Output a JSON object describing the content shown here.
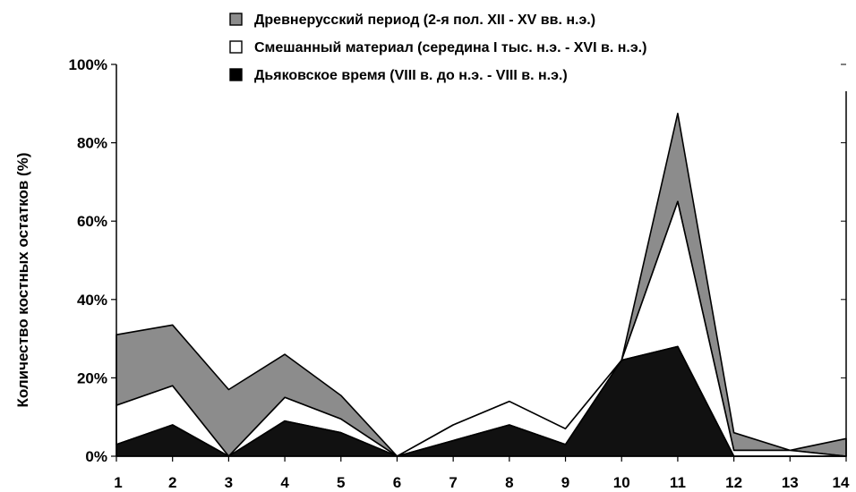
{
  "chart_data": {
    "type": "area",
    "stacked": true,
    "x": [
      "1",
      "2",
      "3",
      "4",
      "5",
      "6",
      "7",
      "8",
      "9",
      "10",
      "11",
      "12",
      "13",
      "14"
    ],
    "ylabel": "Количество костных остатков (%)",
    "ylim": [
      0,
      100
    ],
    "yticks": [
      "0%",
      "20%",
      "40%",
      "60%",
      "80%",
      "100%"
    ],
    "legend_position": "top",
    "series": [
      {
        "name": "Древнерусский период (2-я пол. XII - XV вв. н.э.)",
        "color": "#8c8c8c",
        "values": [
          18,
          15.5,
          17,
          11,
          6,
          0,
          0,
          0,
          0,
          0,
          22.5,
          4.5,
          0,
          4.5
        ]
      },
      {
        "name": "Смешанный материал (середина I тыс. н.э. - XVI в. н.э.)",
        "color": "#ffffff",
        "values": [
          10,
          10,
          0,
          6,
          3.5,
          0,
          4,
          6,
          4,
          0,
          37,
          1.5,
          1.5,
          0
        ]
      },
      {
        "name": "Дьяковское время (VIII в. до н.э. - VIII в. н.э.)",
        "color": "#111111",
        "values": [
          3,
          8,
          0,
          9,
          6,
          0,
          4,
          8,
          3,
          24.5,
          28,
          0,
          0,
          0
        ]
      }
    ]
  }
}
